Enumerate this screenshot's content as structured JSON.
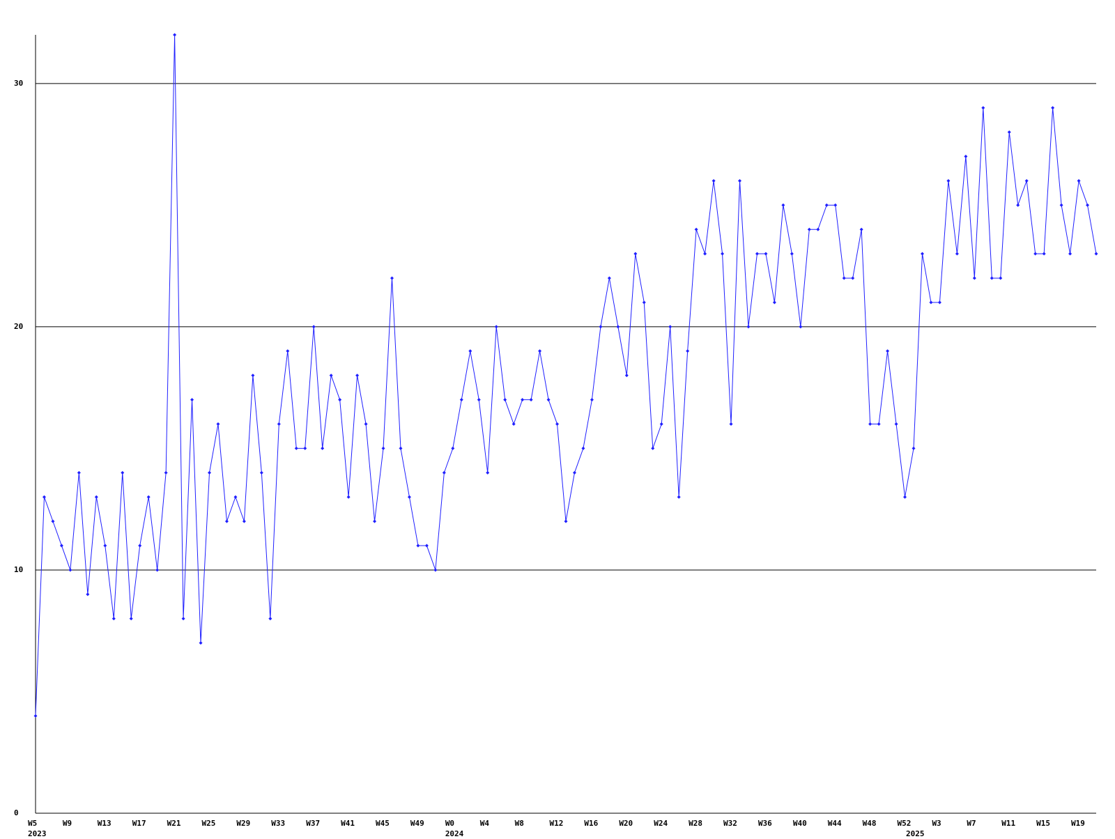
{
  "chart_data": {
    "type": "line",
    "categories": [
      "W5",
      null,
      null,
      null,
      "W9",
      null,
      null,
      null,
      "W13",
      null,
      null,
      null,
      "W17",
      null,
      null,
      null,
      "W21",
      null,
      null,
      null,
      "W25",
      null,
      null,
      null,
      "W29",
      null,
      null,
      null,
      "W33",
      null,
      null,
      null,
      "W37",
      null,
      null,
      null,
      "W41",
      null,
      null,
      null,
      "W45",
      null,
      null,
      null,
      "W49",
      null,
      null,
      null,
      "W0",
      null,
      null,
      null,
      "W4",
      null,
      null,
      null,
      "W8",
      null,
      null,
      null,
      "W12",
      null,
      null,
      null,
      "W16",
      null,
      null,
      null,
      "W20",
      null,
      null,
      null,
      "W24",
      null,
      null,
      null,
      "W28",
      null,
      null,
      null,
      "W32",
      null,
      null,
      null,
      "W36",
      null,
      null,
      null,
      "W40",
      null,
      null,
      null,
      "W44",
      null,
      null,
      null,
      "W48",
      null,
      null,
      null,
      "W52",
      null,
      null,
      null,
      "W3",
      null,
      null,
      null,
      "W7",
      null,
      null,
      null,
      "W11",
      null,
      null,
      null,
      "W15",
      null,
      null,
      null,
      "W19",
      null,
      null
    ],
    "years": [
      "2023",
      null,
      null,
      null,
      null,
      null,
      null,
      null,
      null,
      null,
      null,
      null,
      null,
      null,
      null,
      null,
      null,
      null,
      null,
      null,
      null,
      null,
      null,
      null,
      null,
      null,
      null,
      null,
      null,
      null,
      null,
      null,
      null,
      null,
      null,
      null,
      null,
      null,
      null,
      null,
      null,
      null,
      null,
      null,
      null,
      null,
      null,
      null,
      "2024",
      null,
      null,
      null,
      null,
      null,
      null,
      null,
      null,
      null,
      null,
      null,
      null,
      null,
      null,
      null,
      null,
      null,
      null,
      null,
      null,
      null,
      null,
      null,
      null,
      null,
      null,
      null,
      null,
      null,
      null,
      null,
      null,
      null,
      null,
      null,
      null,
      null,
      null,
      null,
      null,
      null,
      null,
      null,
      null,
      null,
      null,
      null,
      null,
      null,
      null,
      null,
      null,
      "2025",
      null,
      null,
      null,
      null,
      null,
      null,
      null,
      null,
      null,
      null,
      null,
      null,
      null,
      null,
      null,
      null,
      null,
      null,
      null,
      null,
      null
    ],
    "series": [
      {
        "color": "#1f1fff",
        "values": [
          4,
          13,
          12,
          11,
          10,
          14,
          9,
          13,
          11,
          8,
          14,
          8,
          11,
          13,
          10,
          14,
          32,
          8,
          17,
          7,
          14,
          16,
          12,
          13,
          12,
          18,
          14,
          8,
          16,
          19,
          15,
          15,
          20,
          15,
          18,
          17,
          13,
          18,
          16,
          12,
          15,
          22,
          15,
          13,
          11,
          11,
          10,
          14,
          15,
          17,
          19,
          17,
          14,
          20,
          17,
          16,
          17,
          17,
          19,
          17,
          16,
          12,
          14,
          15,
          17,
          20,
          22,
          20,
          18,
          23,
          21,
          15,
          16,
          20,
          13,
          19,
          24,
          23,
          26,
          23,
          16,
          26,
          20,
          23,
          23,
          21,
          25,
          23,
          20,
          24,
          24,
          25,
          25,
          22,
          22,
          24,
          16,
          16,
          19,
          16,
          13,
          15,
          23,
          21,
          21,
          26,
          23,
          27,
          22,
          29,
          22,
          22,
          28,
          25,
          26,
          23,
          23,
          29,
          25,
          23,
          26,
          25,
          23
        ]
      }
    ],
    "ylim": [
      0,
      32
    ],
    "yticks": [
      0,
      10,
      20,
      30
    ],
    "grid": true
  }
}
